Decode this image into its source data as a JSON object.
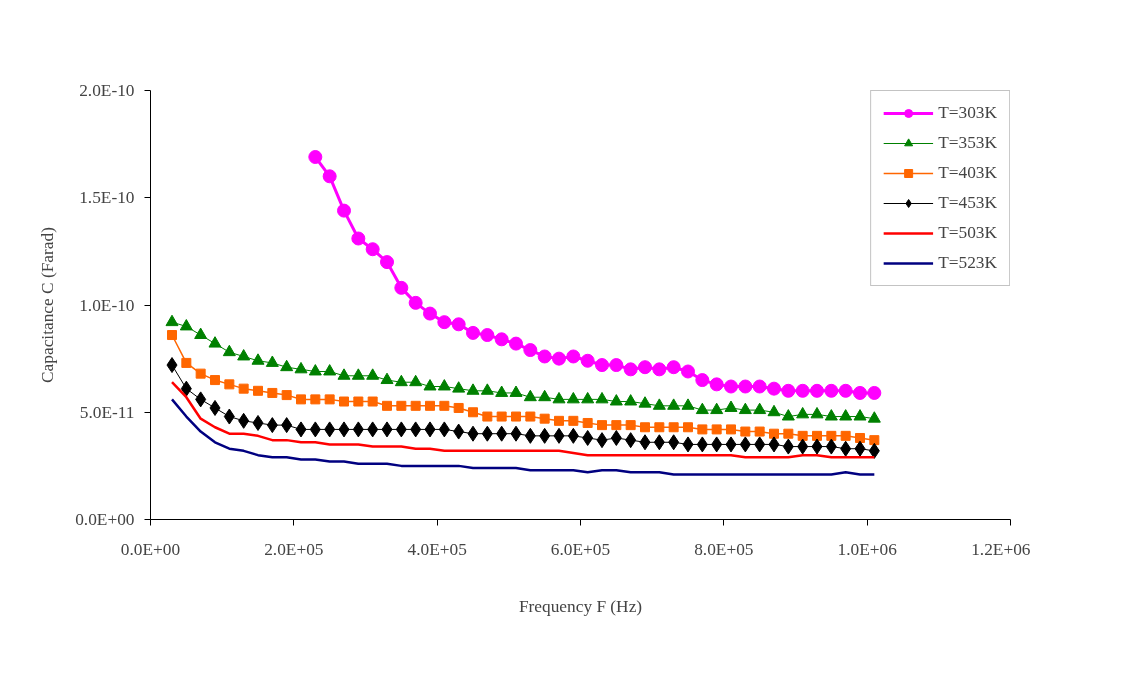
{
  "chart_data": {
    "type": "line",
    "xlabel": "Frequency F (Hz)",
    "ylabel": "Capacitance C (Farad)",
    "xlim": [
      0,
      1200000
    ],
    "ylim": [
      0,
      2e-10
    ],
    "xticks": [
      {
        "value": 0,
        "label": "0.0E+00"
      },
      {
        "value": 200000,
        "label": "2.0E+05"
      },
      {
        "value": 400000,
        "label": "4.0E+05"
      },
      {
        "value": 600000,
        "label": "6.0E+05"
      },
      {
        "value": 800000,
        "label": "8.0E+05"
      },
      {
        "value": 1000000,
        "label": "1.0E+06"
      },
      {
        "value": 1200000,
        "label": "1.2E+06"
      }
    ],
    "yticks": [
      {
        "value": 0,
        "label": "0.0E+00"
      },
      {
        "value": 5e-11,
        "label": "5.0E-11"
      },
      {
        "value": 1e-10,
        "label": "1.0E-10"
      },
      {
        "value": 1.5e-10,
        "label": "1.5E-10"
      },
      {
        "value": 2e-10,
        "label": "2.0E-10"
      }
    ],
    "grid": false,
    "legend": "right",
    "x": [
      30000,
      50000,
      70000,
      90000,
      110000,
      130000,
      150000,
      170000,
      190000,
      210000,
      230000,
      250000,
      270000,
      290000,
      310000,
      330000,
      350000,
      370000,
      390000,
      410000,
      430000,
      450000,
      470000,
      490000,
      510000,
      530000,
      550000,
      570000,
      590000,
      610000,
      630000,
      650000,
      670000,
      690000,
      710000,
      730000,
      750000,
      770000,
      790000,
      810000,
      830000,
      850000,
      870000,
      890000,
      910000,
      930000,
      950000,
      970000,
      990000,
      1010000
    ],
    "series": [
      {
        "name": "T=303K",
        "color": "#ff00ff",
        "marker": "circle",
        "x": [
          230000,
          250000,
          270000,
          290000,
          310000,
          330000,
          350000,
          370000,
          390000,
          410000,
          430000,
          450000,
          470000,
          490000,
          510000,
          530000,
          550000,
          570000,
          590000,
          610000,
          630000,
          650000,
          670000,
          690000,
          710000,
          730000,
          750000,
          770000,
          790000,
          810000,
          830000,
          850000,
          870000,
          890000,
          910000,
          930000,
          950000,
          970000,
          990000,
          1010000
        ],
        "values": [
          1.69e-10,
          1.6e-10,
          1.44e-10,
          1.31e-10,
          1.26e-10,
          1.2e-10,
          1.08e-10,
          1.01e-10,
          9.6e-11,
          9.2e-11,
          9.1e-11,
          8.7e-11,
          8.6e-11,
          8.4e-11,
          8.2e-11,
          7.9e-11,
          7.6e-11,
          7.5e-11,
          7.6e-11,
          7.4e-11,
          7.2e-11,
          7.2e-11,
          7e-11,
          7.1e-11,
          7e-11,
          7.1e-11,
          6.9e-11,
          6.5e-11,
          6.3e-11,
          6.2e-11,
          6.2e-11,
          6.2e-11,
          6.1e-11,
          6e-11,
          6e-11,
          6e-11,
          6e-11,
          6e-11,
          5.9e-11,
          5.9e-11
        ]
      },
      {
        "name": "T=353K",
        "color": "#008000",
        "marker": "triangle",
        "values": [
          9.2e-11,
          9e-11,
          8.6e-11,
          8.2e-11,
          7.8e-11,
          7.6e-11,
          7.4e-11,
          7.3e-11,
          7.1e-11,
          7e-11,
          6.9e-11,
          6.9e-11,
          6.7e-11,
          6.7e-11,
          6.7e-11,
          6.5e-11,
          6.4e-11,
          6.4e-11,
          6.2e-11,
          6.2e-11,
          6.1e-11,
          6e-11,
          6e-11,
          5.9e-11,
          5.9e-11,
          5.7e-11,
          5.7e-11,
          5.6e-11,
          5.6e-11,
          5.6e-11,
          5.6e-11,
          5.5e-11,
          5.5e-11,
          5.4e-11,
          5.3e-11,
          5.3e-11,
          5.3e-11,
          5.1e-11,
          5.1e-11,
          5.2e-11,
          5.1e-11,
          5.1e-11,
          5e-11,
          4.8e-11,
          4.9e-11,
          4.9e-11,
          4.8e-11,
          4.8e-11,
          4.8e-11,
          4.7e-11
        ]
      },
      {
        "name": "T=403K",
        "color": "#ff6600",
        "marker": "square",
        "values": [
          8.6e-11,
          7.3e-11,
          6.8e-11,
          6.5e-11,
          6.3e-11,
          6.1e-11,
          6e-11,
          5.9e-11,
          5.8e-11,
          5.6e-11,
          5.6e-11,
          5.6e-11,
          5.5e-11,
          5.5e-11,
          5.5e-11,
          5.3e-11,
          5.3e-11,
          5.3e-11,
          5.3e-11,
          5.3e-11,
          5.2e-11,
          5e-11,
          4.8e-11,
          4.8e-11,
          4.8e-11,
          4.8e-11,
          4.7e-11,
          4.6e-11,
          4.6e-11,
          4.5e-11,
          4.4e-11,
          4.4e-11,
          4.4e-11,
          4.3e-11,
          4.3e-11,
          4.3e-11,
          4.3e-11,
          4.2e-11,
          4.2e-11,
          4.2e-11,
          4.1e-11,
          4.1e-11,
          4e-11,
          4e-11,
          3.9e-11,
          3.9e-11,
          3.9e-11,
          3.9e-11,
          3.8e-11,
          3.7e-11
        ]
      },
      {
        "name": "T=453K",
        "color": "#000000",
        "marker": "diamond",
        "values": [
          7.2e-11,
          6.1e-11,
          5.6e-11,
          5.2e-11,
          4.8e-11,
          4.6e-11,
          4.5e-11,
          4.4e-11,
          4.4e-11,
          4.2e-11,
          4.2e-11,
          4.2e-11,
          4.2e-11,
          4.2e-11,
          4.2e-11,
          4.2e-11,
          4.2e-11,
          4.2e-11,
          4.2e-11,
          4.2e-11,
          4.1e-11,
          4e-11,
          4e-11,
          4e-11,
          4e-11,
          3.9e-11,
          3.9e-11,
          3.9e-11,
          3.9e-11,
          3.8e-11,
          3.7e-11,
          3.8e-11,
          3.7e-11,
          3.6e-11,
          3.6e-11,
          3.6e-11,
          3.5e-11,
          3.5e-11,
          3.5e-11,
          3.5e-11,
          3.5e-11,
          3.5e-11,
          3.5e-11,
          3.4e-11,
          3.4e-11,
          3.4e-11,
          3.4e-11,
          3.3e-11,
          3.3e-11,
          3.2e-11
        ]
      },
      {
        "name": "T=503K",
        "color": "#ff0000",
        "marker": "none",
        "values": [
          6.4e-11,
          5.7e-11,
          4.7e-11,
          4.3e-11,
          4e-11,
          4e-11,
          3.9e-11,
          3.7e-11,
          3.7e-11,
          3.6e-11,
          3.6e-11,
          3.5e-11,
          3.5e-11,
          3.5e-11,
          3.4e-11,
          3.4e-11,
          3.4e-11,
          3.3e-11,
          3.3e-11,
          3.2e-11,
          3.2e-11,
          3.2e-11,
          3.2e-11,
          3.2e-11,
          3.2e-11,
          3.2e-11,
          3.2e-11,
          3.2e-11,
          3.1e-11,
          3e-11,
          3e-11,
          3e-11,
          3e-11,
          3e-11,
          3e-11,
          3e-11,
          3e-11,
          3e-11,
          3e-11,
          3e-11,
          2.9e-11,
          2.9e-11,
          2.9e-11,
          2.9e-11,
          3e-11,
          3e-11,
          2.9e-11,
          2.9e-11,
          2.9e-11,
          2.9e-11
        ]
      },
      {
        "name": "T=523K",
        "color": "#000080",
        "marker": "none",
        "values": [
          5.6e-11,
          4.8e-11,
          4.1e-11,
          3.6e-11,
          3.3e-11,
          3.2e-11,
          3e-11,
          2.9e-11,
          2.9e-11,
          2.8e-11,
          2.8e-11,
          2.7e-11,
          2.7e-11,
          2.6e-11,
          2.6e-11,
          2.6e-11,
          2.5e-11,
          2.5e-11,
          2.5e-11,
          2.5e-11,
          2.5e-11,
          2.4e-11,
          2.4e-11,
          2.4e-11,
          2.4e-11,
          2.3e-11,
          2.3e-11,
          2.3e-11,
          2.3e-11,
          2.2e-11,
          2.3e-11,
          2.3e-11,
          2.2e-11,
          2.2e-11,
          2.2e-11,
          2.1e-11,
          2.1e-11,
          2.1e-11,
          2.1e-11,
          2.1e-11,
          2.1e-11,
          2.1e-11,
          2.1e-11,
          2.1e-11,
          2.1e-11,
          2.1e-11,
          2.1e-11,
          2.2e-11,
          2.1e-11,
          2.1e-11
        ]
      }
    ]
  }
}
